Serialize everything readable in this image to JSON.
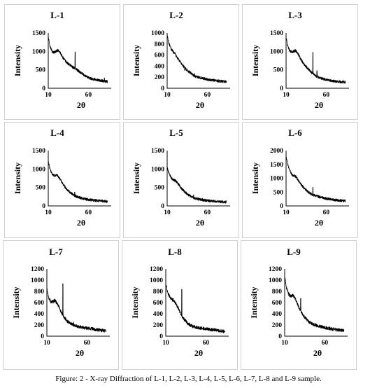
{
  "caption": "Figure: 2 - X-ray Diffraction of L-1, L-2, L-3, L-4, L-5, L-6, L-7, L-8 and L-9 sample.",
  "line_color": "#000000",
  "chart_data": [
    {
      "type": "line",
      "title": "L-1",
      "xlabel": "2θ",
      "ylabel": "Intensity",
      "xlim": [
        10,
        85
      ],
      "ylim": [
        0,
        1500
      ],
      "xticks": [
        10,
        60
      ],
      "yticks": [
        0,
        500,
        1000,
        1500
      ],
      "baseline": [
        [
          10,
          1400
        ],
        [
          12,
          1150
        ],
        [
          15,
          990
        ],
        [
          18,
          970
        ],
        [
          20,
          1010
        ],
        [
          22,
          1030
        ],
        [
          25,
          960
        ],
        [
          28,
          840
        ],
        [
          32,
          720
        ],
        [
          36,
          640
        ],
        [
          40,
          580
        ],
        [
          43,
          540
        ],
        [
          46,
          500
        ],
        [
          50,
          430
        ],
        [
          55,
          350
        ],
        [
          60,
          290
        ],
        [
          65,
          250
        ],
        [
          70,
          230
        ],
        [
          75,
          210
        ],
        [
          80,
          190
        ],
        [
          84,
          180
        ]
      ],
      "peaks": [
        [
          43.5,
          990
        ],
        [
          48.5,
          470
        ],
        [
          80,
          280
        ]
      ]
    },
    {
      "type": "line",
      "title": "L-2",
      "xlabel": "2θ",
      "ylabel": "Intensity",
      "xlim": [
        10,
        85
      ],
      "ylim": [
        0,
        1000
      ],
      "xticks": [
        10,
        60
      ],
      "yticks": [
        0,
        200,
        400,
        600,
        800,
        1000
      ],
      "baseline": [
        [
          10,
          960
        ],
        [
          12,
          820
        ],
        [
          15,
          710
        ],
        [
          18,
          650
        ],
        [
          20,
          620
        ],
        [
          22,
          560
        ],
        [
          25,
          500
        ],
        [
          28,
          440
        ],
        [
          32,
          370
        ],
        [
          36,
          310
        ],
        [
          40,
          270
        ],
        [
          43,
          230
        ],
        [
          46,
          210
        ],
        [
          50,
          195
        ],
        [
          55,
          180
        ],
        [
          60,
          160
        ],
        [
          65,
          150
        ],
        [
          70,
          140
        ],
        [
          75,
          130
        ],
        [
          80,
          125
        ],
        [
          84,
          120
        ]
      ],
      "peaks": [
        [
          32,
          320
        ],
        [
          44,
          270
        ]
      ]
    },
    {
      "type": "line",
      "title": "L-3",
      "xlabel": "2θ",
      "ylabel": "Intensity",
      "xlim": [
        10,
        85
      ],
      "ylim": [
        0,
        1500
      ],
      "xticks": [
        10,
        60
      ],
      "yticks": [
        0,
        500,
        1000,
        1500
      ],
      "baseline": [
        [
          10,
          1380
        ],
        [
          12,
          1150
        ],
        [
          15,
          1000
        ],
        [
          18,
          980
        ],
        [
          20,
          1010
        ],
        [
          22,
          1020
        ],
        [
          25,
          930
        ],
        [
          28,
          800
        ],
        [
          32,
          660
        ],
        [
          36,
          560
        ],
        [
          40,
          470
        ],
        [
          43,
          400
        ],
        [
          46,
          350
        ],
        [
          50,
          300
        ],
        [
          55,
          260
        ],
        [
          60,
          230
        ],
        [
          65,
          210
        ],
        [
          70,
          190
        ],
        [
          75,
          180
        ],
        [
          80,
          170
        ],
        [
          84,
          160
        ]
      ],
      "peaks": [
        [
          43.5,
          980
        ],
        [
          48.5,
          460
        ]
      ]
    },
    {
      "type": "line",
      "title": "L-4",
      "xlabel": "2θ",
      "ylabel": "Intensity",
      "xlim": [
        10,
        85
      ],
      "ylim": [
        0,
        1500
      ],
      "xticks": [
        10,
        60
      ],
      "yticks": [
        0,
        500,
        1000,
        1500
      ],
      "baseline": [
        [
          10,
          1220
        ],
        [
          12,
          1000
        ],
        [
          15,
          860
        ],
        [
          18,
          820
        ],
        [
          20,
          840
        ],
        [
          22,
          810
        ],
        [
          25,
          720
        ],
        [
          28,
          600
        ],
        [
          32,
          480
        ],
        [
          36,
          390
        ],
        [
          40,
          320
        ],
        [
          43,
          280
        ],
        [
          46,
          250
        ],
        [
          50,
          220
        ],
        [
          55,
          190
        ],
        [
          60,
          170
        ],
        [
          65,
          155
        ],
        [
          70,
          145
        ],
        [
          75,
          135
        ],
        [
          80,
          125
        ],
        [
          84,
          120
        ]
      ],
      "peaks": [
        [
          43,
          380
        ]
      ]
    },
    {
      "type": "line",
      "title": "L-5",
      "xlabel": "2θ",
      "ylabel": "Intensity",
      "xlim": [
        10,
        85
      ],
      "ylim": [
        0,
        1500
      ],
      "xticks": [
        10,
        60
      ],
      "yticks": [
        0,
        500,
        1000,
        1500
      ],
      "baseline": [
        [
          10,
          1040
        ],
        [
          12,
          900
        ],
        [
          15,
          760
        ],
        [
          18,
          700
        ],
        [
          20,
          690
        ],
        [
          22,
          640
        ],
        [
          25,
          560
        ],
        [
          28,
          470
        ],
        [
          32,
          380
        ],
        [
          36,
          310
        ],
        [
          40,
          250
        ],
        [
          43,
          220
        ],
        [
          46,
          200
        ],
        [
          50,
          180
        ],
        [
          55,
          160
        ],
        [
          60,
          145
        ],
        [
          65,
          135
        ],
        [
          70,
          125
        ],
        [
          75,
          115
        ],
        [
          80,
          110
        ],
        [
          84,
          105
        ]
      ],
      "peaks": [
        [
          43,
          300
        ]
      ]
    },
    {
      "type": "line",
      "title": "L-6",
      "xlabel": "2θ",
      "ylabel": "Intensity",
      "xlim": [
        10,
        85
      ],
      "ylim": [
        0,
        2000
      ],
      "xticks": [
        10,
        60
      ],
      "yticks": [
        0,
        500,
        1000,
        1500,
        2000
      ],
      "baseline": [
        [
          10,
          1780
        ],
        [
          12,
          1500
        ],
        [
          15,
          1250
        ],
        [
          18,
          1100
        ],
        [
          20,
          1090
        ],
        [
          22,
          1060
        ],
        [
          25,
          940
        ],
        [
          28,
          800
        ],
        [
          32,
          660
        ],
        [
          36,
          550
        ],
        [
          40,
          460
        ],
        [
          43,
          400
        ],
        [
          46,
          370
        ],
        [
          50,
          340
        ],
        [
          55,
          300
        ],
        [
          60,
          270
        ],
        [
          65,
          240
        ],
        [
          70,
          220
        ],
        [
          75,
          200
        ],
        [
          80,
          190
        ],
        [
          84,
          180
        ]
      ],
      "peaks": [
        [
          43.5,
          680
        ],
        [
          48.5,
          380
        ]
      ]
    },
    {
      "type": "line",
      "title": "L-7",
      "xlabel": "2θ",
      "ylabel": "Intensity",
      "xlim": [
        10,
        85
      ],
      "ylim": [
        0,
        1200
      ],
      "xticks": [
        10,
        60
      ],
      "yticks": [
        0,
        200,
        400,
        600,
        800,
        1000,
        1200
      ],
      "baseline": [
        [
          10,
          850
        ],
        [
          12,
          700
        ],
        [
          15,
          610
        ],
        [
          18,
          620
        ],
        [
          20,
          640
        ],
        [
          22,
          600
        ],
        [
          25,
          530
        ],
        [
          28,
          420
        ],
        [
          32,
          330
        ],
        [
          36,
          260
        ],
        [
          40,
          220
        ],
        [
          43,
          200
        ],
        [
          46,
          185
        ],
        [
          50,
          170
        ],
        [
          55,
          155
        ],
        [
          60,
          145
        ],
        [
          65,
          135
        ],
        [
          70,
          120
        ],
        [
          75,
          110
        ],
        [
          80,
          100
        ],
        [
          84,
          100
        ]
      ],
      "peaks": [
        [
          30,
          940
        ],
        [
          43,
          240
        ]
      ]
    },
    {
      "type": "line",
      "title": "L-8",
      "xlabel": "2θ",
      "ylabel": "Intensity",
      "xlim": [
        10,
        85
      ],
      "ylim": [
        0,
        1200
      ],
      "xticks": [
        10,
        60
      ],
      "yticks": [
        0,
        200,
        400,
        600,
        800,
        1000,
        1200
      ],
      "baseline": [
        [
          10,
          950
        ],
        [
          12,
          800
        ],
        [
          15,
          700
        ],
        [
          18,
          650
        ],
        [
          20,
          640
        ],
        [
          22,
          590
        ],
        [
          25,
          520
        ],
        [
          28,
          420
        ],
        [
          32,
          320
        ],
        [
          36,
          250
        ],
        [
          40,
          200
        ],
        [
          43,
          180
        ],
        [
          46,
          165
        ],
        [
          50,
          150
        ],
        [
          55,
          140
        ],
        [
          60,
          130
        ],
        [
          65,
          120
        ],
        [
          70,
          110
        ],
        [
          75,
          100
        ],
        [
          80,
          90
        ],
        [
          84,
          85
        ]
      ],
      "peaks": [
        [
          30,
          840
        ]
      ]
    },
    {
      "type": "line",
      "title": "L-9",
      "xlabel": "2θ",
      "ylabel": "Intensity",
      "xlim": [
        10,
        85
      ],
      "ylim": [
        0,
        1200
      ],
      "xticks": [
        10,
        60
      ],
      "yticks": [
        0,
        200,
        400,
        600,
        800,
        1000,
        1200
      ],
      "baseline": [
        [
          10,
          1080
        ],
        [
          12,
          880
        ],
        [
          15,
          750
        ],
        [
          18,
          710
        ],
        [
          20,
          730
        ],
        [
          22,
          700
        ],
        [
          25,
          610
        ],
        [
          28,
          500
        ],
        [
          32,
          400
        ],
        [
          36,
          320
        ],
        [
          40,
          260
        ],
        [
          43,
          230
        ],
        [
          46,
          210
        ],
        [
          50,
          190
        ],
        [
          55,
          170
        ],
        [
          60,
          150
        ],
        [
          65,
          140
        ],
        [
          70,
          125
        ],
        [
          75,
          115
        ],
        [
          80,
          105
        ],
        [
          84,
          100
        ]
      ],
      "peaks": [
        [
          30,
          680
        ]
      ]
    }
  ]
}
